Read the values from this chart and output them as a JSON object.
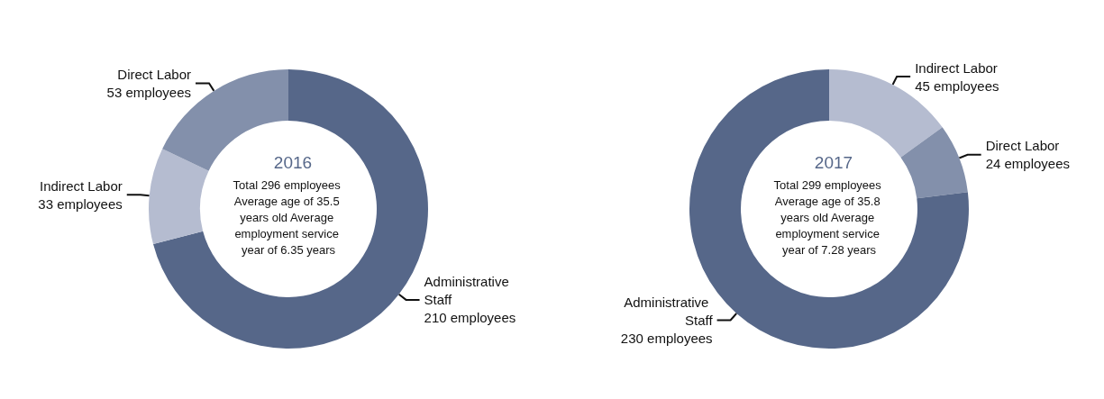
{
  "chart_data": [
    {
      "type": "donut",
      "title": "2016",
      "annotations": [
        "Total 296 employees Average age of 35.5 years old Average employment service year of 6.35 years"
      ],
      "categories": [
        "Administrative Staff",
        "Indirect Labor",
        "Direct Labor"
      ],
      "values": [
        210,
        33,
        53
      ],
      "colors": [
        "#566789",
        "#b5bcd0",
        "#8390ab"
      ],
      "value_labels": [
        "210 employees",
        "33 employees",
        "53 employees"
      ]
    },
    {
      "type": "donut",
      "title": "2017",
      "annotations": [
        "Total 299 employees Average age of 35.8 years old Average employment service year of 7.28 years"
      ],
      "categories": [
        "Indirect Labor",
        "Direct Labor",
        "Administrative Staff"
      ],
      "values": [
        45,
        24,
        230
      ],
      "colors": [
        "#b5bcd0",
        "#8390ab",
        "#566789"
      ],
      "value_labels": [
        "45 employees",
        "24 employees",
        "230 employees"
      ]
    }
  ]
}
